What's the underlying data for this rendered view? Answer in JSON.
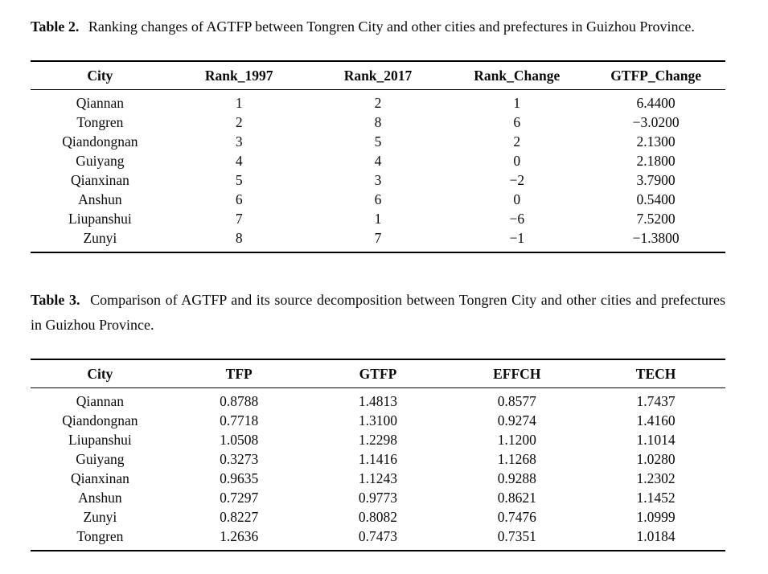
{
  "tables": [
    {
      "caption_label": "Table 2.",
      "caption_text": "Ranking changes of AGTFP between Tongren City and other cities and prefectures in Guizhou Province.",
      "columns": [
        "City",
        "Rank_1997",
        "Rank_2017",
        "Rank_Change",
        "GTFP_Change"
      ],
      "rows": [
        [
          "Qiannan",
          "1",
          "2",
          "1",
          "6.4400"
        ],
        [
          "Tongren",
          "2",
          "8",
          "6",
          "−3.0200"
        ],
        [
          "Qiandongnan",
          "3",
          "5",
          "2",
          "2.1300"
        ],
        [
          "Guiyang",
          "4",
          "4",
          "0",
          "2.1800"
        ],
        [
          "Qianxinan",
          "5",
          "3",
          "−2",
          "3.7900"
        ],
        [
          "Anshun",
          "6",
          "6",
          "0",
          "0.5400"
        ],
        [
          "Liupanshui",
          "7",
          "1",
          "−6",
          "7.5200"
        ],
        [
          "Zunyi",
          "8",
          "7",
          "−1",
          "−1.3800"
        ]
      ]
    },
    {
      "caption_label": "Table 3.",
      "caption_text": "Comparison of AGTFP and its source decomposition between Tongren City and other cities and prefectures in Guizhou Province.",
      "columns": [
        "City",
        "TFP",
        "GTFP",
        "EFFCH",
        "TECH"
      ],
      "rows": [
        [
          "Qiannan",
          "0.8788",
          "1.4813",
          "0.8577",
          "1.7437"
        ],
        [
          "Qiandongnan",
          "0.7718",
          "1.3100",
          "0.9274",
          "1.4160"
        ],
        [
          "Liupanshui",
          "1.0508",
          "1.2298",
          "1.1200",
          "1.1014"
        ],
        [
          "Guiyang",
          "0.3273",
          "1.1416",
          "1.1268",
          "1.0280"
        ],
        [
          "Qianxinan",
          "0.9635",
          "1.1243",
          "0.9288",
          "1.2302"
        ],
        [
          "Anshun",
          "0.7297",
          "0.9773",
          "0.8621",
          "1.1452"
        ],
        [
          "Zunyi",
          "0.8227",
          "0.8082",
          "0.7476",
          "1.0999"
        ],
        [
          "Tongren",
          "1.2636",
          "0.7473",
          "0.7351",
          "1.0184"
        ]
      ]
    }
  ]
}
